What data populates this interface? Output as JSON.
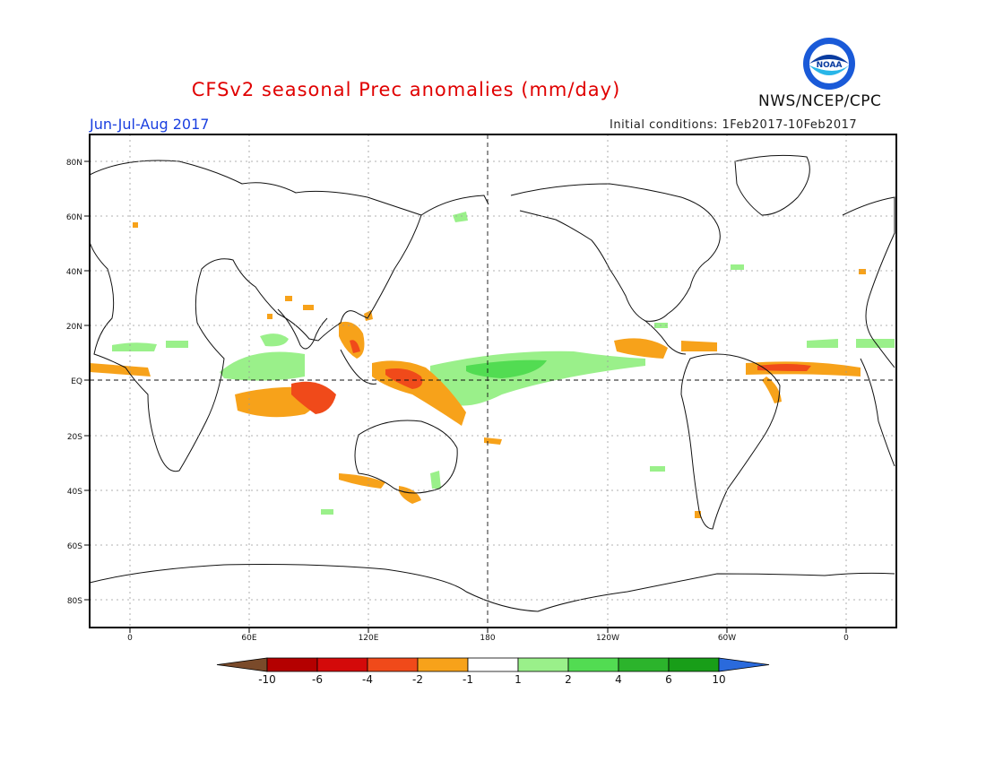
{
  "header": {
    "title": "CFSv2 seasonal Prec anomalies (mm/day)",
    "season": "Jun-Jul-Aug 2017",
    "initial_conditions": "Initial conditions: 1Feb2017-10Feb2017",
    "agency": "NWS/NCEP/CPC",
    "logo_text": "NOAA"
  },
  "map": {
    "lat_labels": [
      "80N",
      "60N",
      "40N",
      "20N",
      "EQ",
      "20S",
      "40S",
      "60S",
      "80S"
    ],
    "lon_labels": [
      "0",
      "60E",
      "120E",
      "180",
      "120W",
      "60W",
      "0"
    ]
  },
  "colorbar": {
    "labels": [
      "-10",
      "-6",
      "-4",
      "-2",
      "-1",
      "1",
      "2",
      "4",
      "6",
      "10"
    ],
    "colors": [
      "#7a4a2a",
      "#b40000",
      "#d40a0a",
      "#f04a1a",
      "#f7a21a",
      "#ffffff",
      "#9af08a",
      "#52dc52",
      "#2cb42c",
      "#189e18",
      "#2a6adc"
    ]
  }
}
